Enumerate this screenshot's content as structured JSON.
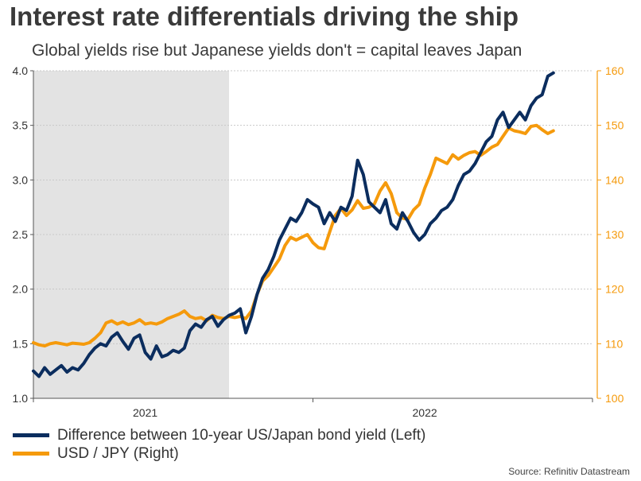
{
  "title": "Interest rate differentials driving the ship",
  "subtitle": "Global yields rise but Japanese yields don't = capital leaves Japan",
  "source": "Source: Refinitiv Datastream",
  "colors": {
    "left_series": "#0b2d5e",
    "right_series": "#f59a0c",
    "shade": "#e3e3e3",
    "grid": "#c8c8c8"
  },
  "legend": [
    {
      "label": "Difference between 10-year US/Japan bond yield (Left)",
      "color": "#0b2d5e"
    },
    {
      "label": "USD / JPY (Right)",
      "color": "#f59a0c"
    }
  ],
  "chart_data": {
    "type": "line",
    "title": "Interest rate differentials driving the ship",
    "x_range": [
      2020.6,
      2022.6
    ],
    "x_ticks": [
      {
        "value": 2021.0,
        "label": "2021"
      },
      {
        "value": 2022.0,
        "label": "2022"
      }
    ],
    "x_boundary_ticks": [
      2020.6,
      2021.6,
      2022.6
    ],
    "shaded_region": [
      2020.6,
      2021.3
    ],
    "y_left": {
      "label": "Left",
      "range": [
        1.0,
        4.0
      ],
      "ticks": [
        "1.0",
        "1.5",
        "2.0",
        "2.5",
        "3.0",
        "3.5",
        "4.0"
      ]
    },
    "y_right": {
      "label": "Right",
      "range": [
        100,
        160
      ],
      "ticks": [
        "100",
        "110",
        "120",
        "130",
        "140",
        "150",
        "160"
      ]
    },
    "grid": true,
    "series": [
      {
        "name": "Difference between 10-year US/Japan bond yield (Left)",
        "axis": "left",
        "color": "#0b2d5e",
        "x": [
          2020.6,
          2020.62,
          2020.64,
          2020.66,
          2020.68,
          2020.7,
          2020.72,
          2020.74,
          2020.76,
          2020.78,
          2020.8,
          2020.82,
          2020.84,
          2020.86,
          2020.88,
          2020.9,
          2020.92,
          2020.94,
          2020.96,
          2020.98,
          2021.0,
          2021.02,
          2021.04,
          2021.06,
          2021.08,
          2021.1,
          2021.12,
          2021.14,
          2021.16,
          2021.18,
          2021.2,
          2021.22,
          2021.24,
          2021.26,
          2021.28,
          2021.3,
          2021.32,
          2021.34,
          2021.36,
          2021.38,
          2021.4,
          2021.42,
          2021.44,
          2021.46,
          2021.48,
          2021.5,
          2021.52,
          2021.54,
          2021.56,
          2021.58,
          2021.6,
          2021.62,
          2021.64,
          2021.66,
          2021.68,
          2021.7,
          2021.72,
          2021.74,
          2021.76,
          2021.78,
          2021.8,
          2021.82,
          2021.84,
          2021.86,
          2021.88,
          2021.9,
          2021.92,
          2021.94,
          2021.96,
          2021.98,
          2022.0,
          2022.02,
          2022.04,
          2022.06,
          2022.08,
          2022.1,
          2022.12,
          2022.14,
          2022.16,
          2022.18,
          2022.2,
          2022.22,
          2022.24,
          2022.26,
          2022.28,
          2022.3,
          2022.32,
          2022.34,
          2022.36,
          2022.38,
          2022.4,
          2022.42,
          2022.44,
          2022.46
        ],
        "values": [
          1.25,
          1.2,
          1.28,
          1.22,
          1.26,
          1.3,
          1.24,
          1.28,
          1.26,
          1.32,
          1.4,
          1.46,
          1.5,
          1.48,
          1.56,
          1.6,
          1.52,
          1.45,
          1.55,
          1.58,
          1.42,
          1.36,
          1.48,
          1.38,
          1.4,
          1.44,
          1.42,
          1.46,
          1.62,
          1.68,
          1.65,
          1.72,
          1.75,
          1.66,
          1.72,
          1.76,
          1.78,
          1.82,
          1.6,
          1.75,
          1.95,
          2.1,
          2.18,
          2.3,
          2.45,
          2.55,
          2.65,
          2.62,
          2.7,
          2.82,
          2.78,
          2.75,
          2.6,
          2.7,
          2.62,
          2.75,
          2.72,
          2.85,
          3.18,
          3.05,
          2.8,
          2.75,
          2.7,
          2.82,
          2.6,
          2.55,
          2.7,
          2.62,
          2.52,
          2.45,
          2.5,
          2.6,
          2.65,
          2.72,
          2.75,
          2.82,
          2.95,
          3.05,
          3.08,
          3.15,
          3.25,
          3.35,
          3.4,
          3.55,
          3.62,
          3.48,
          3.55,
          3.62,
          3.55,
          3.68,
          3.75,
          3.78,
          3.95,
          3.98
        ]
      },
      {
        "name": "USD / JPY (Right)",
        "axis": "right",
        "color": "#f59a0c",
        "x": [
          2020.6,
          2020.62,
          2020.64,
          2020.66,
          2020.68,
          2020.7,
          2020.72,
          2020.74,
          2020.76,
          2020.78,
          2020.8,
          2020.82,
          2020.84,
          2020.86,
          2020.88,
          2020.9,
          2020.92,
          2020.94,
          2020.96,
          2020.98,
          2021.0,
          2021.02,
          2021.04,
          2021.06,
          2021.08,
          2021.1,
          2021.12,
          2021.14,
          2021.16,
          2021.18,
          2021.2,
          2021.22,
          2021.24,
          2021.26,
          2021.28,
          2021.3,
          2021.32,
          2021.34,
          2021.36,
          2021.38,
          2021.4,
          2021.42,
          2021.44,
          2021.46,
          2021.48,
          2021.5,
          2021.52,
          2021.54,
          2021.56,
          2021.58,
          2021.6,
          2021.62,
          2021.64,
          2021.66,
          2021.68,
          2021.7,
          2021.72,
          2021.74,
          2021.76,
          2021.78,
          2021.8,
          2021.82,
          2021.84,
          2021.86,
          2021.88,
          2021.9,
          2021.92,
          2021.94,
          2021.96,
          2021.98,
          2022.0,
          2022.02,
          2022.04,
          2022.06,
          2022.08,
          2022.1,
          2022.12,
          2022.14,
          2022.16,
          2022.18,
          2022.2,
          2022.22,
          2022.24,
          2022.26,
          2022.28,
          2022.3,
          2022.32,
          2022.34,
          2022.36,
          2022.38,
          2022.4,
          2022.42,
          2022.44,
          2022.46
        ],
        "values": [
          110.2,
          109.8,
          109.6,
          110.0,
          110.2,
          110.0,
          109.8,
          110.1,
          110.0,
          109.9,
          110.2,
          111.0,
          112.0,
          113.8,
          114.2,
          113.6,
          114.0,
          113.5,
          113.8,
          114.4,
          113.6,
          113.8,
          113.6,
          114.0,
          114.6,
          115.0,
          115.4,
          116.0,
          115.0,
          114.6,
          114.8,
          114.2,
          115.2,
          114.8,
          114.6,
          115.0,
          114.8,
          115.0,
          114.6,
          116.0,
          119.0,
          121.5,
          122.5,
          124.0,
          125.5,
          128.0,
          129.5,
          129.0,
          129.5,
          130.0,
          128.5,
          127.6,
          127.4,
          130.5,
          133.5,
          134.8,
          133.5,
          134.5,
          136.2,
          134.8,
          135.0,
          135.6,
          138.0,
          139.5,
          137.5,
          134.0,
          133.0,
          132.8,
          134.5,
          135.5,
          138.5,
          141.0,
          144.0,
          143.5,
          143.0,
          144.6,
          143.8,
          144.5,
          145.0,
          145.2,
          144.5,
          145.2,
          146.0,
          146.5,
          148.0,
          149.5,
          149.0,
          148.8,
          148.5,
          149.8,
          150.0,
          149.2,
          148.5,
          149.0
        ]
      }
    ]
  }
}
